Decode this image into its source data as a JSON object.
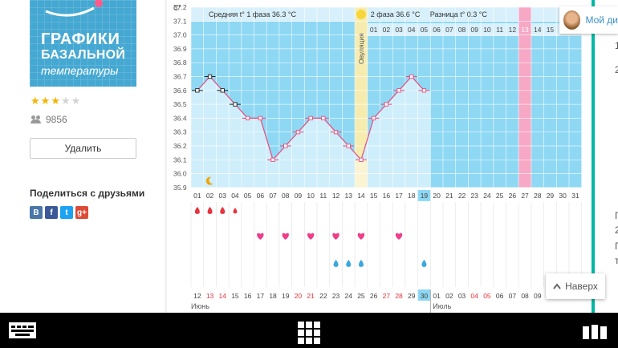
{
  "app": {
    "logo_line1": "ГРАФИКИ",
    "logo_line2": "БАЗАЛЬНОЙ",
    "logo_line3": "температуры",
    "rating": 3,
    "rating_max": 5,
    "users_count": "9856",
    "delete_label": "Удалить",
    "share_title": "Поделиться с друзьями",
    "social": [
      {
        "label": "В",
        "color": "#4a76a8",
        "icon": "vk-icon"
      },
      {
        "label": "f",
        "color": "#3b5998",
        "icon": "facebook-icon"
      },
      {
        "label": "t",
        "color": "#1da1f2",
        "icon": "twitter-icon"
      },
      {
        "label": "g+",
        "color": "#dd4b39",
        "icon": "google-plus-icon"
      }
    ]
  },
  "profile": {
    "label": "Мой ди"
  },
  "right_edge_fragments": [
    "1",
    "2",
    "Г",
    "2",
    "Г",
    "т"
  ],
  "up_button": {
    "label": "Наверх"
  },
  "chart_data": {
    "type": "line",
    "unit_label": "С°",
    "ylim": [
      35.9,
      37.2
    ],
    "yticks": [
      "37.2",
      "37.1",
      "37.0",
      "36.9",
      "36.8",
      "36.7",
      "36.6",
      "36.5",
      "36.4",
      "36.3",
      "36.2",
      "36.1",
      "36.0",
      "35.9"
    ],
    "phase1_label": "Средняя t° 1 фаза 36.3 °С",
    "phase2_label": "2 фаза 36.6 °С",
    "diff_label": "Разница t° 0.3 °С",
    "ovulation_label": "Овуляция",
    "days": [
      "01",
      "02",
      "03",
      "04",
      "05",
      "06",
      "07",
      "08",
      "09",
      "10",
      "11",
      "12",
      "13",
      "14",
      "15",
      "16",
      "17",
      "18",
      "19",
      "20",
      "21",
      "22",
      "23",
      "24",
      "25",
      "26",
      "27",
      "28",
      "29",
      "30",
      "31"
    ],
    "temperatures": [
      36.6,
      36.7,
      36.6,
      36.5,
      36.4,
      36.4,
      36.1,
      36.2,
      36.3,
      36.4,
      36.4,
      36.3,
      36.2,
      36.1,
      36.4,
      36.5,
      36.6,
      36.7,
      36.6
    ],
    "first_phase_days": 13,
    "ovulation_day": 14,
    "phase2_day_labels": [
      "01",
      "02",
      "03",
      "04",
      "05",
      "06",
      "07",
      "08",
      "09",
      "10",
      "11",
      "12",
      "13",
      "14",
      "15"
    ],
    "highlight_phase2_day": 13,
    "current_day": 19,
    "bleeding_days": [
      1,
      2,
      3,
      4
    ],
    "heart_days": [
      6,
      8,
      10,
      12,
      14,
      17
    ],
    "drop_days": [
      12,
      13,
      14,
      19
    ],
    "moon_day": 2,
    "dates": [
      "12",
      "13",
      "14",
      "15",
      "16",
      "17",
      "18",
      "19",
      "20",
      "21",
      "22",
      "23",
      "24",
      "25",
      "26",
      "27",
      "28",
      "29",
      "30",
      "01",
      "02",
      "03",
      "04",
      "05",
      "06",
      "07",
      "08",
      "09"
    ],
    "red_dates": [
      1,
      2,
      8,
      9,
      15,
      16,
      22,
      23
    ],
    "today_date_index": 18,
    "month_label_1": "Июнь",
    "month_label_2": "Июль"
  }
}
